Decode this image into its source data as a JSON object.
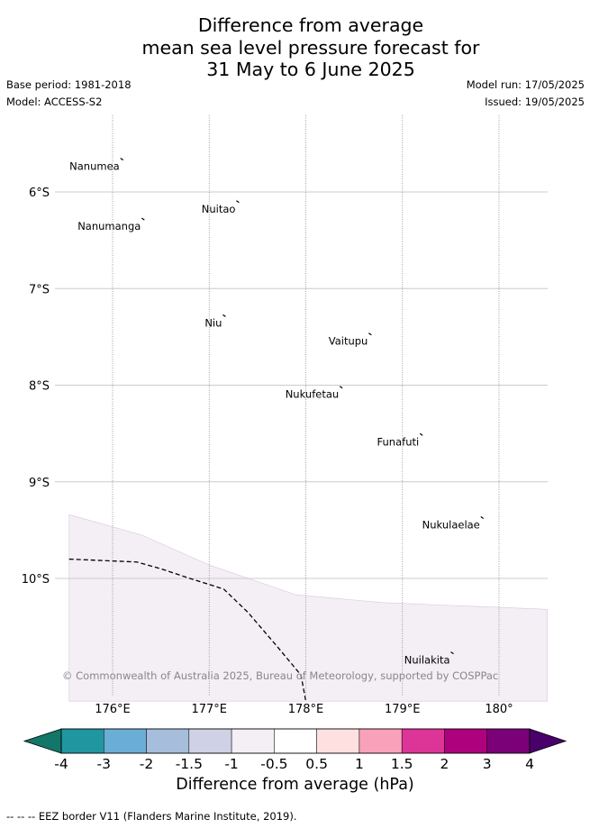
{
  "title": {
    "line1": "Difference from average",
    "line2": "mean sea level pressure forecast for",
    "line3": "31 May to 6 June 2025"
  },
  "meta": {
    "base_period": "Base period: 1981-2018",
    "model": "Model: ACCESS-S2",
    "model_run": "Model run: 17/05/2025",
    "issued": "Issued: 19/05/2025"
  },
  "map": {
    "lat_labels": [
      {
        "lat": -6,
        "label": "6°S"
      },
      {
        "lat": -7,
        "label": "7°S"
      },
      {
        "lat": -8,
        "label": "8°S"
      },
      {
        "lat": -9,
        "label": "9°S"
      },
      {
        "lat": -10,
        "label": "10°S"
      }
    ],
    "lon_labels": [
      {
        "lon": 176,
        "label": "176°E"
      },
      {
        "lon": 177,
        "label": "177°E"
      },
      {
        "lon": 178,
        "label": "178°E"
      },
      {
        "lon": 179,
        "label": "179°E"
      },
      {
        "lon": 180,
        "label": "180°"
      }
    ],
    "places": [
      {
        "name": "Nanumea",
        "lon": 176.1,
        "lat": -5.67
      },
      {
        "name": "Nuitao",
        "lon": 177.3,
        "lat": -6.11
      },
      {
        "name": "Nanumanga",
        "lon": 176.32,
        "lat": -6.29
      },
      {
        "name": "Niu",
        "lon": 177.16,
        "lat": -7.29
      },
      {
        "name": "Vaitupu",
        "lon": 178.67,
        "lat": -7.48
      },
      {
        "name": "Nukufetau",
        "lon": 178.37,
        "lat": -8.03
      },
      {
        "name": "Funafuti",
        "lon": 179.2,
        "lat": -8.52
      },
      {
        "name": "Nukulaelae",
        "lon": 179.83,
        "lat": -9.38
      },
      {
        "name": "Nuilakita",
        "lon": 179.52,
        "lat": -10.78
      }
    ],
    "copyright": "© Commonwealth of Australia 2025, Bureau of Meteorology, supported by COSPPac",
    "anomaly_fill_color": "#f4eef5"
  },
  "colorbar": {
    "ticks": [
      "-4",
      "-3",
      "-2",
      "-1.5",
      "-1",
      "-0.5",
      "0.5",
      "1",
      "1.5",
      "2",
      "3",
      "4"
    ],
    "colors_low_end": "#127669",
    "colors": [
      "#2096a0",
      "#6baed5",
      "#a6bddb",
      "#cfd1e5",
      "#f4eef5",
      "#ffffff",
      "#fee0e0",
      "#f9a1bb",
      "#dd3497",
      "#ad017e",
      "#7a0177"
    ],
    "colors_high_end": "#49006a",
    "label": "Difference from average (hPa)"
  },
  "footnote": "-- -- -- EEZ border V11 (Flanders Marine Institute, 2019)."
}
